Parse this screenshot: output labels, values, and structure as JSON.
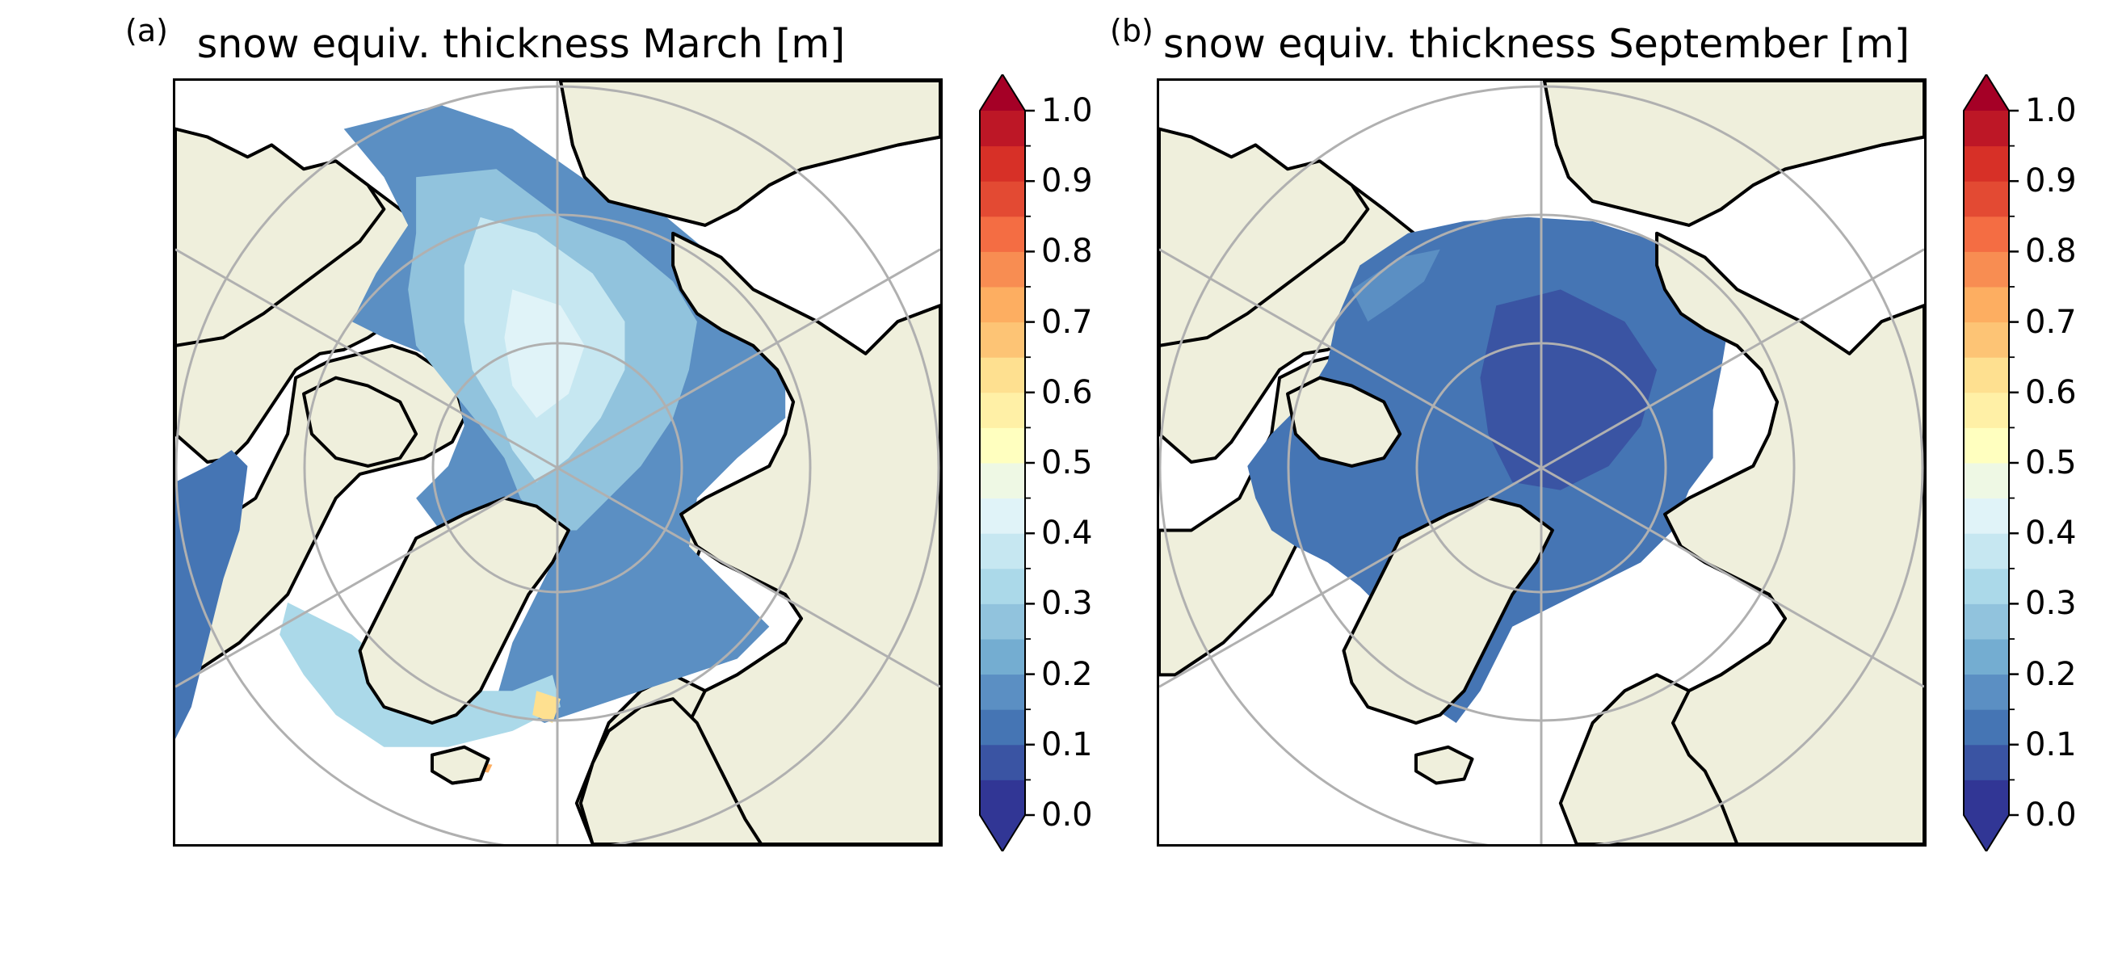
{
  "panels": [
    {
      "letter": "(a)",
      "title": "snow equiv. thickness March [m]",
      "month": "March"
    },
    {
      "letter": "(b)",
      "title": "snow equiv. thickness September [m]",
      "month": "September"
    }
  ],
  "colorbar": {
    "min": 0.0,
    "max": 1.0,
    "step": 0.05,
    "extend": "both",
    "tick_labels": [
      "0.0",
      "0.1",
      "0.2",
      "0.3",
      "0.4",
      "0.5",
      "0.6",
      "0.7",
      "0.8",
      "0.9",
      "1.0"
    ],
    "colors": [
      "#313695",
      "#3a54a3",
      "#4575b4",
      "#5b8fc3",
      "#74add1",
      "#91c3dd",
      "#abd9e9",
      "#c6e7f1",
      "#e0f3f8",
      "#eef8e4",
      "#ffffbf",
      "#fff0a6",
      "#fee090",
      "#fdc475",
      "#fdae61",
      "#f88d52",
      "#f46d43",
      "#e34a33",
      "#d73027",
      "#bd1726"
    ],
    "under_color": "#313695",
    "over_color": "#a50026"
  },
  "map_style": {
    "land_color": "#efefdc",
    "ocean_color": "#ffffff",
    "coastline_color": "#000000",
    "gridline_color": "#b0b0b0",
    "projection": "north-polar-stereographic"
  }
}
